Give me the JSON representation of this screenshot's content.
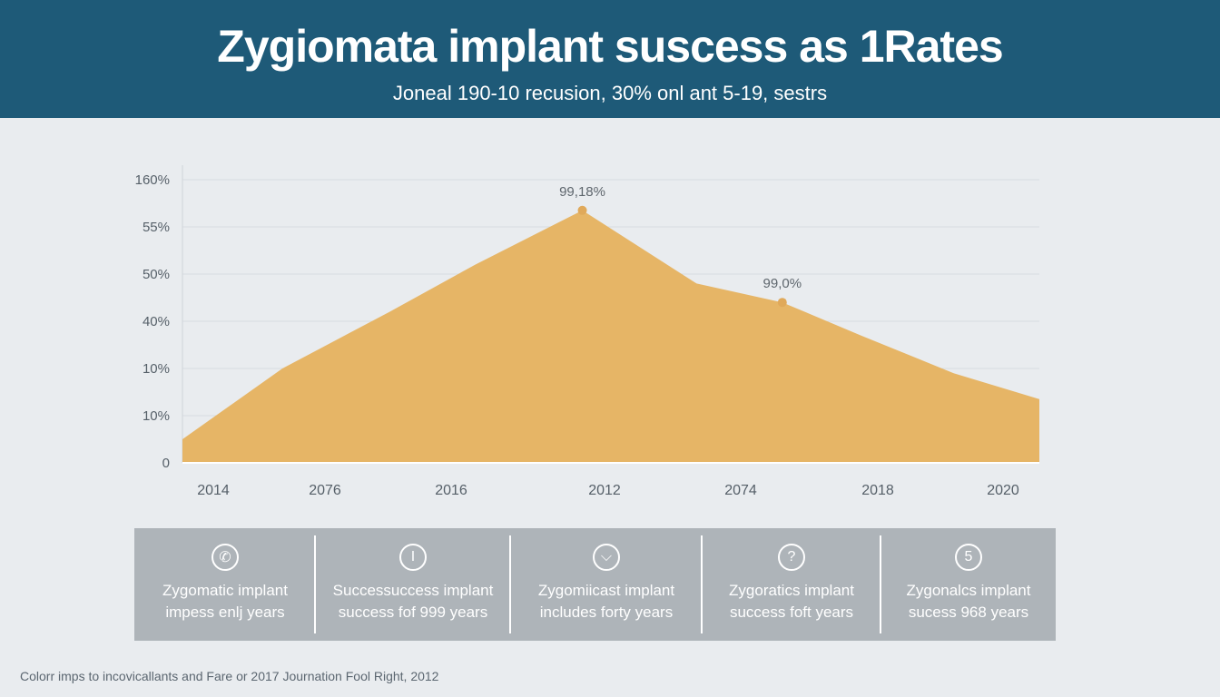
{
  "header": {
    "title": "Zygiomata implant suscess as 1Rates",
    "subtitle": "Joneal 190-10 recusion, 30% onl ant 5-19, sestrs"
  },
  "colors": {
    "header_bg": "#1e5a78",
    "area_fill": "#e6b566",
    "point": "#e0a95a",
    "grid": "#d7dce0",
    "panel_bg": "#aeb4b9"
  },
  "chart_data": {
    "type": "area",
    "title": "Zygiomata implant suscess as 1Rates",
    "subtitle": "Joneal 190-10 recusion, 30% onl ant 5-19, sestrs",
    "y_tick_labels": [
      "0",
      "10%",
      "10%",
      "40%",
      "50%",
      "55%",
      "160%"
    ],
    "x_tick_labels": [
      "2014",
      "2076",
      "2016",
      "2012",
      "2074",
      "2018",
      "2020"
    ],
    "series": [
      {
        "values": [
          0.5,
          2,
          3.2,
          4.2,
          5.35,
          3.8,
          3.4,
          2.7,
          1.9,
          1.35
        ]
      }
    ],
    "x_positions": [
      0,
      0.7,
      1.45,
      2.05,
      2.8,
      3.6,
      4.2,
      4.75,
      5.4,
      6.0
    ],
    "annotations": [
      {
        "text": "99,18%",
        "point_index": 4
      },
      {
        "text": "99,0%",
        "point_index": 6
      }
    ],
    "grid": true,
    "ylim": [
      0,
      6
    ],
    "xlim": [
      0,
      6
    ]
  },
  "features": [
    {
      "icon": "phone-icon",
      "icon_char": "✆",
      "line1": "Zygomatic implant",
      "line2": "impess enlj years"
    },
    {
      "icon": "info-icon",
      "icon_char": "I",
      "line1": "Successuccess implant",
      "line2": "success fof 999 years"
    },
    {
      "icon": "tooth-icon",
      "icon_char": "⌵",
      "line1": "Zygomiicast implant",
      "line2": "includes forty years"
    },
    {
      "icon": "question-icon",
      "icon_char": "?",
      "line1": "Zygoratics implant",
      "line2": "success foft years"
    },
    {
      "icon": "five-icon",
      "icon_char": "5",
      "line1": "Zygonalcs implant",
      "line2": "sucess 968 years"
    }
  ],
  "footer": {
    "text": "Colorr imps to incovicallants and Fare or 2017 Journation Fool Right, 2012"
  }
}
